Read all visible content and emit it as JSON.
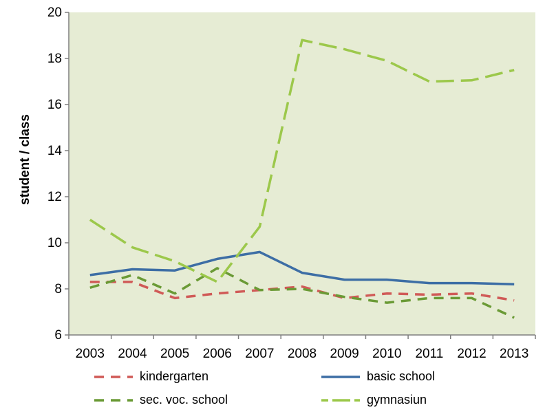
{
  "chart_data": {
    "type": "line",
    "title": "",
    "xlabel": "",
    "ylabel": "student / class",
    "x": [
      "2003",
      "2004",
      "2005",
      "2006",
      "2007",
      "2008",
      "2009",
      "2010",
      "2011",
      "2012",
      "2013"
    ],
    "ylim": [
      6,
      20
    ],
    "yticks": [
      6,
      8,
      10,
      12,
      14,
      16,
      18,
      20
    ],
    "grid": false,
    "background": "#e6ecd4",
    "legend_position": "bottom",
    "series": [
      {
        "name": "kindergarten",
        "style": "dashed",
        "color": "#d05a57",
        "values": [
          8.3,
          8.3,
          7.6,
          7.8,
          7.95,
          8.1,
          7.6,
          7.8,
          7.75,
          7.8,
          7.5
        ]
      },
      {
        "name": "basic school",
        "style": "solid",
        "color": "#3d6ea5",
        "values": [
          8.6,
          8.85,
          8.8,
          9.3,
          9.6,
          8.7,
          8.4,
          8.4,
          8.25,
          8.25,
          8.2
        ]
      },
      {
        "name": "sec. voc. school",
        "style": "dashed",
        "color": "#6a9a35",
        "values": [
          8.05,
          8.6,
          7.8,
          8.9,
          7.95,
          8.0,
          7.65,
          7.4,
          7.6,
          7.6,
          6.75
        ]
      },
      {
        "name": "gymnasiun",
        "style": "longdash",
        "color": "#9cc84b",
        "values": [
          11.0,
          9.8,
          9.2,
          8.3,
          10.7,
          18.8,
          18.4,
          17.9,
          17.0,
          17.05,
          17.5
        ]
      }
    ]
  }
}
